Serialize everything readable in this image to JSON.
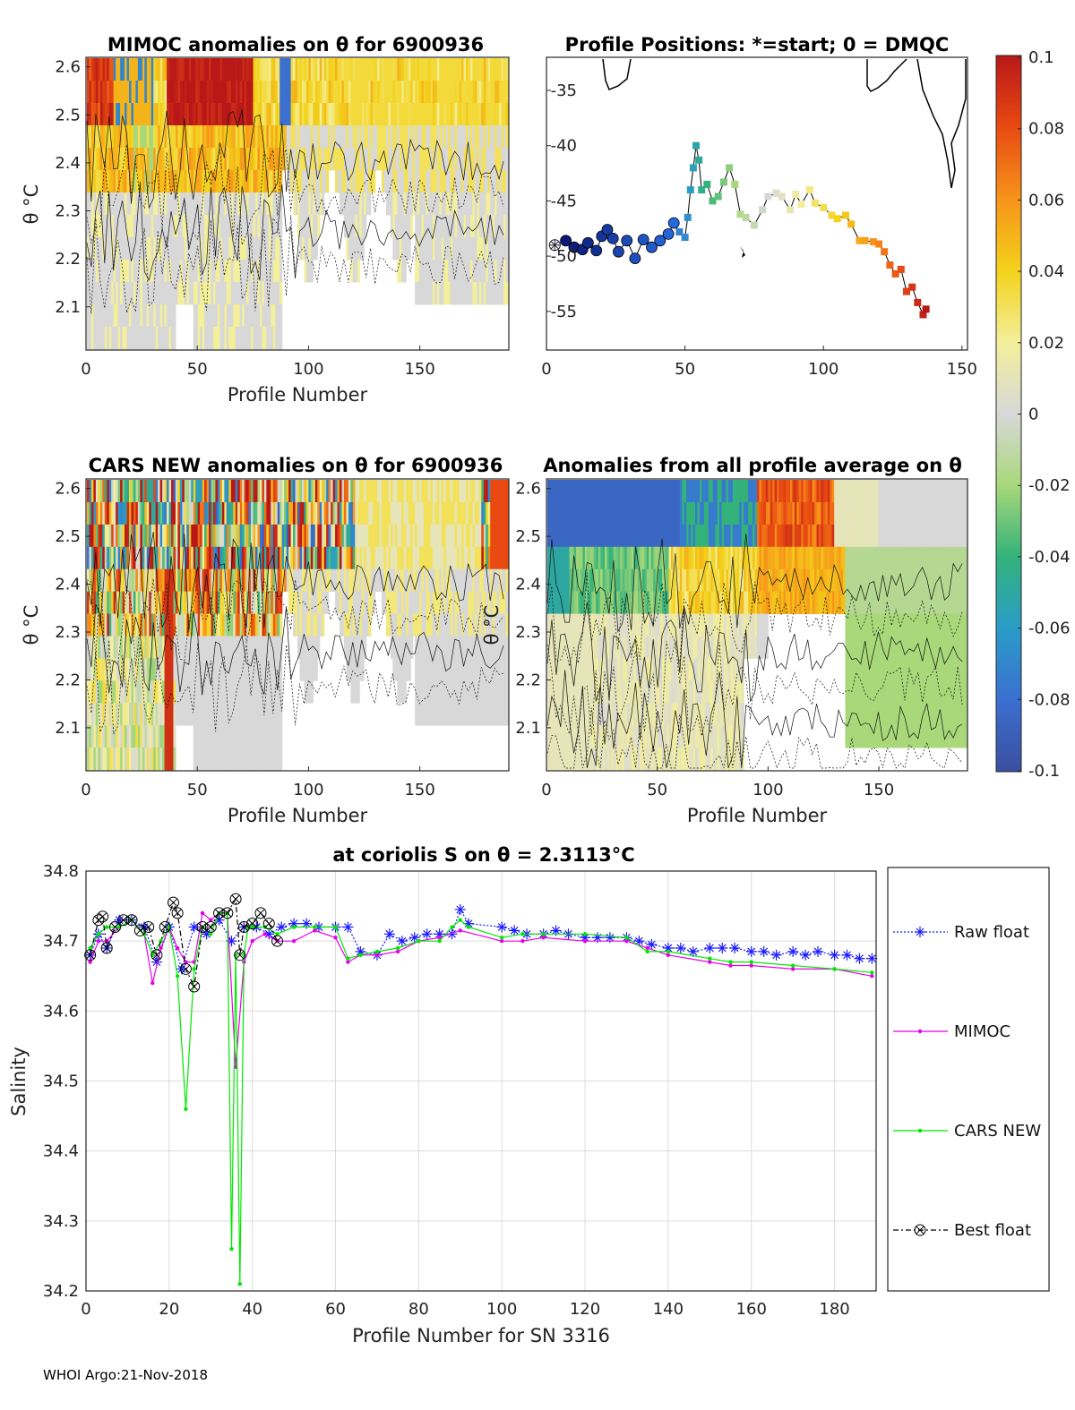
{
  "footer": "WHOI Argo:21-Nov-2018",
  "colors": {
    "raw": "#1a1aff",
    "mimoc": "#e800e8",
    "cars": "#00e800",
    "best": "#000000",
    "frame": "#262626",
    "grid": "#dcdcdc"
  },
  "colorbar": {
    "ticks": [
      "0.1",
      "0.08",
      "0.06",
      "0.04",
      "0.02",
      "0",
      "-0.02",
      "-0.04",
      "-0.06",
      "-0.08",
      "-0.1"
    ],
    "range": [
      -0.1,
      0.1
    ]
  },
  "panels": {
    "mimoc": {
      "title": "MIMOC anomalies on θ  for 6900936",
      "ylabel": "θ °C",
      "xlabel": "Profile Number",
      "xticks": [
        "0",
        "50",
        "100",
        "150"
      ],
      "yticks": [
        "2.6",
        "2.5",
        "2.4",
        "2.3",
        "2.2",
        "2.1"
      ]
    },
    "positions": {
      "title": "Profile Positions: *=start; 0 = DMQC",
      "xticks": [
        "0",
        "50",
        "100",
        "150"
      ],
      "yticks": [
        "-35",
        "-40",
        "-45",
        "-50",
        "-55"
      ]
    },
    "cars": {
      "title": "CARS NEW anomalies on θ for 6900936",
      "ylabel": "θ °C",
      "xlabel": "Profile Number",
      "xticks": [
        "0",
        "50",
        "100",
        "150"
      ],
      "yticks": [
        "2.6",
        "2.5",
        "2.4",
        "2.3",
        "2.2",
        "2.1"
      ]
    },
    "average": {
      "title": "Anomalies from all profile average on θ",
      "ylabel": "θ °C",
      "xlabel": "Profile Number",
      "xticks": [
        "0",
        "50",
        "100",
        "150"
      ],
      "yticks": [
        "2.6",
        "2.5",
        "2.4",
        "2.3",
        "2.2",
        "2.1"
      ]
    }
  },
  "chart_data": [
    {
      "type": "heatmap",
      "name": "MIMOC anomalies",
      "title": "MIMOC anomalies on θ  for 6900936",
      "xlabel": "Profile Number",
      "ylabel": "θ °C",
      "xlim": [
        0,
        190
      ],
      "ylim": [
        2.01,
        2.62
      ]
    },
    {
      "type": "scatter",
      "name": "Profile Positions",
      "title": "Profile Positions: *=start; 0 = DMQC",
      "xlim": [
        0,
        152
      ],
      "ylim": [
        -58.5,
        -32
      ],
      "x": [
        3,
        7,
        10,
        13,
        15,
        18,
        20,
        22,
        24,
        26,
        29,
        32,
        35,
        38,
        41,
        44,
        46,
        48,
        50,
        51,
        52,
        53,
        54,
        55,
        56,
        58,
        60,
        62,
        64,
        66,
        68,
        70,
        72,
        75,
        78,
        80,
        83,
        85,
        88,
        90,
        92,
        95,
        97,
        100,
        103,
        105,
        108,
        110,
        113,
        115,
        118,
        120,
        122,
        124,
        126,
        128,
        130,
        132,
        134,
        136,
        137
      ],
      "y": [
        -49,
        -48.6,
        -49.2,
        -49.4,
        -48.8,
        -49.5,
        -48.2,
        -47.6,
        -48.4,
        -49.6,
        -48.6,
        -50.2,
        -48.5,
        -49.2,
        -48.6,
        -48,
        -47,
        -47.8,
        -48.3,
        -46.5,
        -44,
        -42,
        -40,
        -41.3,
        -44,
        -43.5,
        -45,
        -44.6,
        -43.3,
        -42,
        -43.5,
        -46.2,
        -46.5,
        -47.2,
        -45.8,
        -44.6,
        -44.3,
        -44.6,
        -45.8,
        -44.4,
        -45.3,
        -44,
        -45.2,
        -45.6,
        -46.3,
        -46.6,
        -46.3,
        -47.1,
        -48.6,
        -48.6,
        -48.7,
        -48.9,
        -49.6,
        -50.8,
        -51.6,
        -51.2,
        -53.2,
        -52.8,
        -54.2,
        -55.3,
        -54.8
      ]
    },
    {
      "type": "heatmap",
      "name": "CARS NEW anomalies",
      "title": "CARS NEW anomalies on θ for 6900936",
      "xlabel": "Profile Number",
      "ylabel": "θ °C",
      "xlim": [
        0,
        190
      ],
      "ylim": [
        2.01,
        2.62
      ]
    },
    {
      "type": "heatmap",
      "name": "Profile average anomalies",
      "title": "Anomalies from all profile average on θ",
      "xlabel": "Profile Number",
      "ylabel": "θ °C",
      "xlim": [
        0,
        190
      ],
      "ylim": [
        2.01,
        2.62
      ]
    },
    {
      "type": "line",
      "name": "Salinity",
      "title": "at coriolis S on θ = 2.3113°C",
      "xlabel": "Profile Number for SN 3316",
      "ylabel": "Salinity",
      "xlim": [
        0,
        190
      ],
      "ylim": [
        34.2,
        34.8
      ],
      "xticks": [
        "0",
        "20",
        "40",
        "60",
        "80",
        "100",
        "120",
        "140",
        "160",
        "180"
      ],
      "yticks": [
        "34.8",
        "34.7",
        "34.6",
        "34.5",
        "34.4",
        "34.3",
        "34.2"
      ],
      "legend": [
        "Raw float",
        "MIMOC",
        "CARS NEW",
        "Best float"
      ],
      "series": [
        {
          "name": "Raw float",
          "x": [
            1,
            3,
            5,
            8,
            11,
            14,
            17,
            20,
            23,
            26,
            29,
            32,
            35,
            38,
            41,
            44,
            47,
            50,
            53,
            56,
            60,
            63,
            66,
            70,
            73,
            76,
            79,
            82,
            85,
            88,
            90,
            92,
            100,
            103,
            106,
            110,
            113,
            116,
            120,
            123,
            126,
            130,
            133,
            136,
            140,
            143,
            146,
            150,
            153,
            156,
            160,
            163,
            166,
            170,
            173,
            176,
            180,
            183,
            186,
            189
          ],
          "y": [
            34.68,
            34.71,
            34.69,
            34.73,
            34.73,
            34.72,
            34.67,
            34.72,
            34.66,
            34.72,
            34.71,
            34.73,
            34.7,
            34.72,
            34.72,
            34.71,
            34.72,
            34.725,
            34.725,
            34.72,
            34.72,
            34.72,
            34.685,
            34.68,
            34.71,
            34.7,
            34.705,
            34.71,
            34.71,
            34.71,
            34.745,
            34.725,
            34.72,
            34.715,
            34.71,
            34.71,
            34.715,
            34.71,
            34.705,
            34.705,
            34.705,
            34.705,
            34.7,
            34.695,
            34.69,
            34.69,
            34.685,
            34.69,
            34.69,
            34.69,
            34.685,
            34.685,
            34.68,
            34.685,
            34.68,
            34.685,
            34.68,
            34.68,
            34.675,
            34.675
          ]
        },
        {
          "name": "MIMOC",
          "x": [
            1,
            3,
            5,
            8,
            11,
            14,
            16,
            18,
            20,
            22,
            24,
            26,
            28,
            30,
            32,
            34,
            36,
            38,
            40,
            43,
            46,
            50,
            55,
            60,
            63,
            66,
            70,
            75,
            80,
            85,
            90,
            100,
            105,
            110,
            120,
            130,
            135,
            140,
            150,
            155,
            160,
            170,
            180,
            189
          ],
          "y": [
            34.67,
            34.7,
            34.7,
            34.72,
            34.73,
            34.71,
            34.64,
            34.69,
            34.72,
            34.69,
            34.67,
            34.67,
            34.74,
            34.73,
            34.74,
            34.74,
            34.52,
            34.67,
            34.7,
            34.71,
            34.7,
            34.7,
            34.715,
            34.705,
            34.67,
            34.68,
            34.68,
            34.685,
            34.7,
            34.705,
            34.715,
            34.7,
            34.7,
            34.705,
            34.7,
            34.7,
            34.69,
            34.68,
            34.67,
            34.665,
            34.665,
            34.66,
            34.66,
            34.65
          ]
        },
        {
          "name": "CARS NEW",
          "x": [
            1,
            3,
            5,
            8,
            11,
            14,
            16,
            18,
            20,
            22,
            24,
            26,
            28,
            30,
            32,
            34,
            35,
            36,
            37,
            38,
            39,
            40,
            43,
            46,
            50,
            55,
            60,
            63,
            66,
            70,
            75,
            80,
            85,
            88,
            90,
            92,
            100,
            105,
            110,
            120,
            130,
            135,
            140,
            150,
            155,
            160,
            170,
            180,
            189
          ],
          "y": [
            34.69,
            34.71,
            34.72,
            34.72,
            34.73,
            34.71,
            34.68,
            34.7,
            34.72,
            34.65,
            34.46,
            34.66,
            34.72,
            34.71,
            34.74,
            34.74,
            34.26,
            34.68,
            34.21,
            34.68,
            34.72,
            34.72,
            34.72,
            34.71,
            34.72,
            34.72,
            34.72,
            34.675,
            34.68,
            34.685,
            34.69,
            34.7,
            34.7,
            34.72,
            34.73,
            34.72,
            34.705,
            34.71,
            34.71,
            34.71,
            34.705,
            34.685,
            34.685,
            34.675,
            34.67,
            34.67,
            34.665,
            34.66,
            34.655
          ]
        },
        {
          "name": "Best float",
          "x": [
            1,
            3,
            4,
            5,
            7,
            9,
            11,
            13,
            15,
            17,
            19,
            21,
            22,
            24,
            26,
            28,
            30,
            32,
            34,
            36,
            37,
            38,
            40,
            42,
            44,
            46
          ],
          "y": [
            34.68,
            34.73,
            34.735,
            34.69,
            34.72,
            34.73,
            34.73,
            34.715,
            34.72,
            34.68,
            34.72,
            34.755,
            34.74,
            34.66,
            34.635,
            34.72,
            34.72,
            34.74,
            34.74,
            34.76,
            34.68,
            34.72,
            34.725,
            34.74,
            34.725,
            34.7
          ]
        }
      ]
    }
  ]
}
